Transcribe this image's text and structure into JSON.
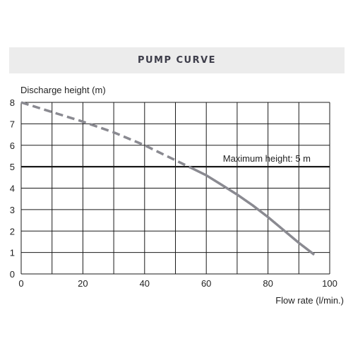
{
  "header": {
    "title": "PUMP CURVE"
  },
  "chart_data": {
    "type": "line",
    "title": "PUMP CURVE",
    "xlabel": "Flow rate (l/min.)",
    "ylabel": "Discharge height (m)",
    "xlim": [
      0,
      100
    ],
    "ylim": [
      0,
      8
    ],
    "x_ticks": [
      0,
      20,
      40,
      60,
      80,
      100
    ],
    "y_ticks": [
      0,
      1,
      2,
      3,
      4,
      5,
      6,
      7,
      8
    ],
    "grid": true,
    "curve_color": "#8a8a91",
    "reference_color": "#1a1a1a",
    "series": [
      {
        "style": "dashed",
        "x": [
          0,
          10,
          20,
          30,
          40,
          50,
          55
        ],
        "y": [
          8,
          7.55,
          7.1,
          6.6,
          6.0,
          5.3,
          4.95
        ]
      },
      {
        "style": "solid",
        "x": [
          55,
          60,
          65,
          70,
          75,
          80,
          85,
          90,
          95
        ],
        "y": [
          4.95,
          4.6,
          4.15,
          3.7,
          3.2,
          2.65,
          2.05,
          1.45,
          0.9
        ]
      }
    ],
    "reference_lines": [
      {
        "y": 5,
        "label": "Maximum height: 5 m"
      }
    ]
  }
}
